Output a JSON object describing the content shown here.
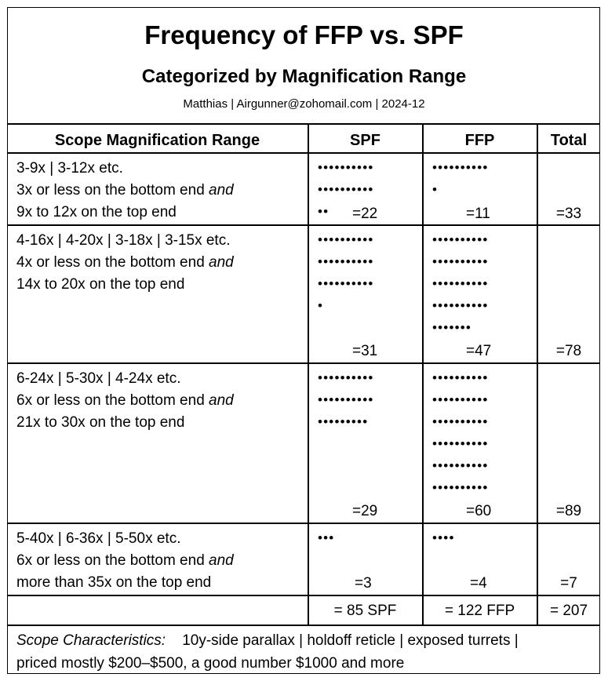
{
  "header": {
    "title": "Frequency of FFP vs. SPF",
    "subtitle": "Categorized by Magnification Range",
    "byline": "Matthias  |  Airgunner@zohomail.com  |  2024-12"
  },
  "columns": {
    "range": "Scope Magnification Range",
    "spf": "SPF",
    "ffp": "FFP",
    "total": "Total"
  },
  "rows": [
    {
      "ranges": "3-9x  |  3-12x   etc.",
      "line2": "3x or less on the bottom end",
      "line3": "9x to 12x on the top end",
      "and": "and",
      "spf_dots": "••••••••••\n••••••••••\n••",
      "ffp_dots": "••••••••••\n•",
      "spf": "=22",
      "ffp": "=11",
      "total": "=33"
    },
    {
      "ranges": "4-16x  |  4-20x  |  3-18x  |  3-15x   etc.",
      "line2": "4x or less on the bottom end",
      "line3": "14x to 20x on the top end",
      "and": "and",
      "spf_dots": "••••••••••\n••••••••••\n••••••••••\n•",
      "ffp_dots": "••••••••••\n••••••••••\n••••••••••\n••••••••••\n•••••••",
      "spf": "=31",
      "ffp": "=47",
      "total": "=78"
    },
    {
      "ranges": "6-24x  |  5-30x  |  4-24x   etc.",
      "line2": "6x or less on the bottom end",
      "line3": "21x to 30x on the top end",
      "and": "and",
      "spf_dots": "••••••••••\n••••••••••\n•••••••••",
      "ffp_dots": "••••••••••\n••••••••••\n••••••••••\n••••••••••\n••••••••••\n••••••••••",
      "spf": "=29",
      "ffp": "=60",
      "total": "=89"
    },
    {
      "ranges": "5-40x  |  6-36x  |  5-50x   etc.",
      "line2": "6x or less on the bottom end",
      "line3": "more than 35x on the top end",
      "and": "and",
      "spf_dots": "•••",
      "ffp_dots": "••••",
      "spf": "=3",
      "ffp": "=4",
      "total": "=7"
    }
  ],
  "totals": {
    "spf": "= 85 SPF",
    "ffp": "= 122 FFP",
    "total": "= 207"
  },
  "footer": {
    "label": "Scope Characteristics:",
    "line1_rest": "10y-side parallax  |  holdoff reticle  |  exposed turrets  |",
    "line2": "priced mostly $200–$500, a good number $1000 and more"
  }
}
